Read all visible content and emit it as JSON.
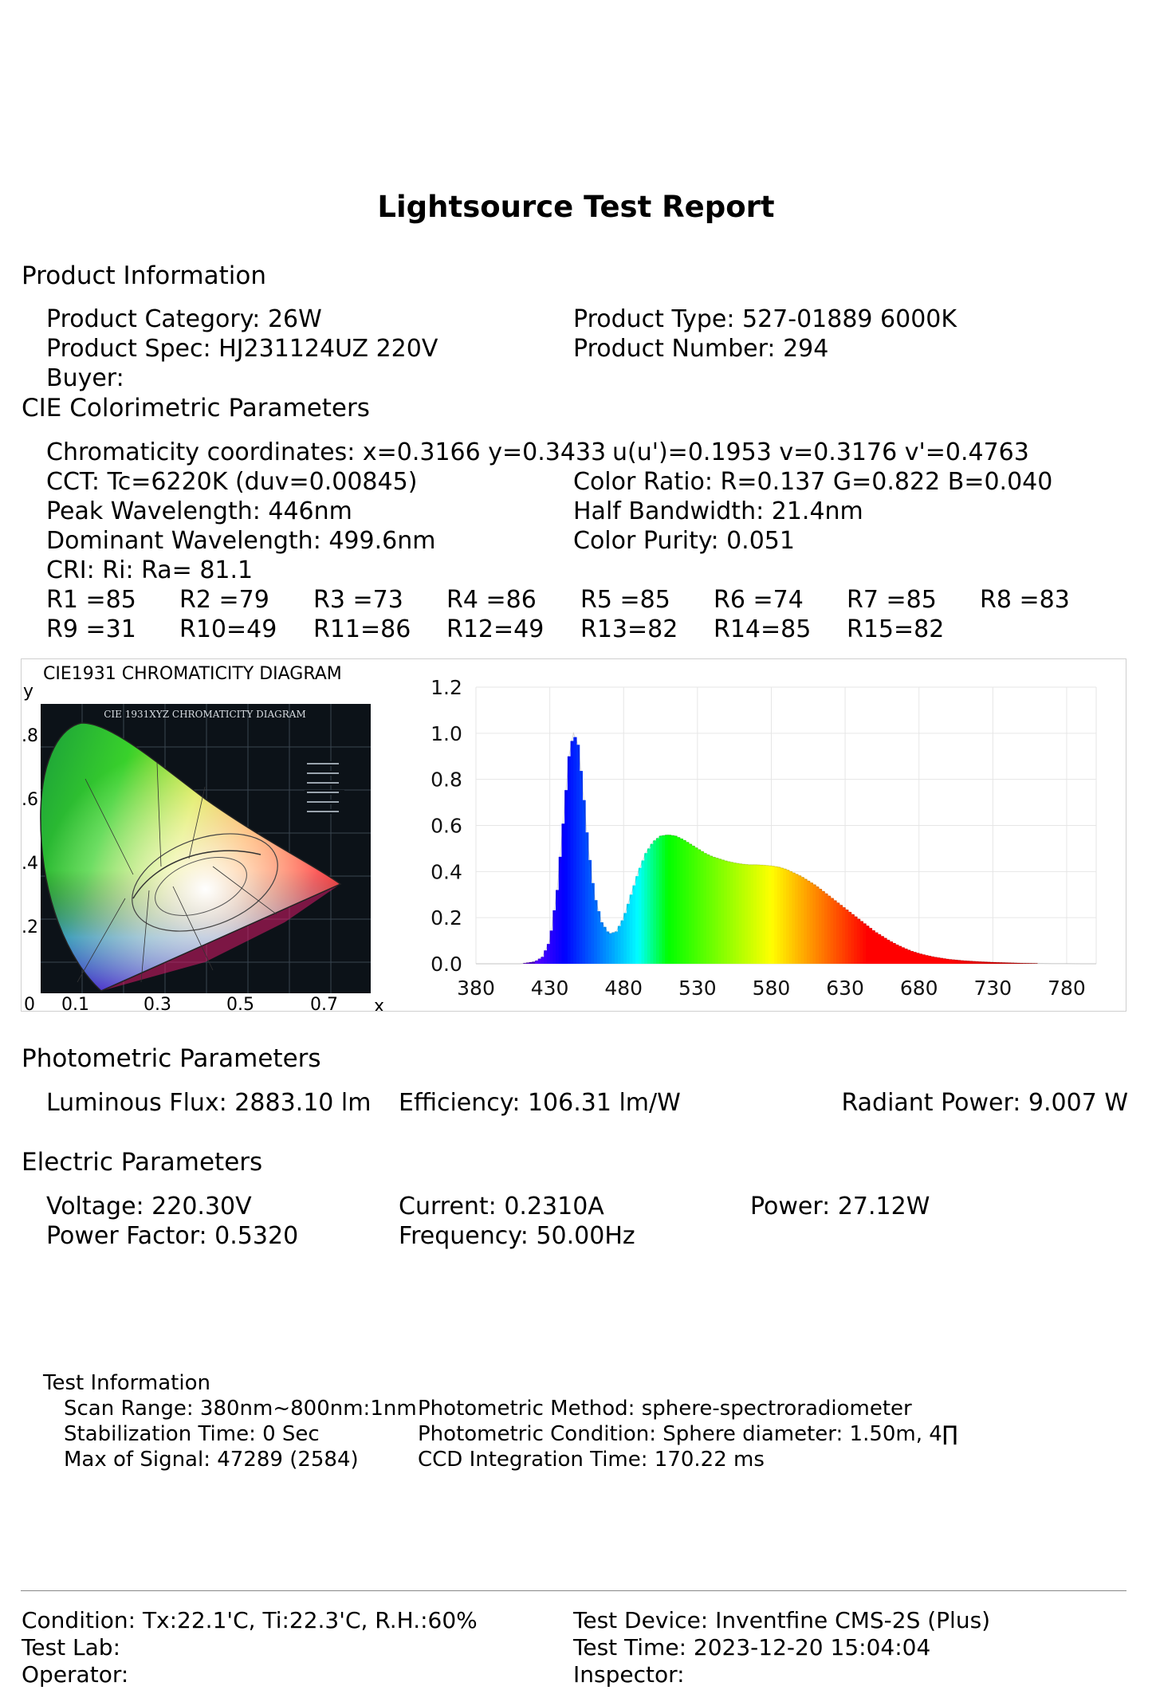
{
  "title": "Lightsource Test Report",
  "product": {
    "heading": "Product Information",
    "category": "Product Category: 26W",
    "type": "Product Type: 527-01889 6000K",
    "spec": "Product Spec: HJ231124UZ 220V",
    "number": "Product Number: 294",
    "buyer": "Buyer:"
  },
  "cie": {
    "heading": "CIE Colorimetric Parameters",
    "chromaticity": "Chromaticity coordinates: x=0.3166 y=0.3433",
    "uv": "u(u')=0.1953 v=0.3176 v'=0.4763",
    "cct": "CCT: Tc=6220K (duv=0.00845)",
    "color_ratio": "Color Ratio: R=0.137  G=0.822  B=0.040",
    "peak": "Peak Wavelength: 446nm",
    "half_bw": "Half Bandwidth: 21.4nm",
    "dominant": "Dominant Wavelength: 499.6nm",
    "purity": "Color Purity: 0.051",
    "cri": "CRI: Ri: Ra= 81.1",
    "r_row1": [
      "R1 =85",
      "R2 =79",
      "R3 =73",
      "R4 =86",
      "R5 =85",
      "R6 =74",
      "R7 =85",
      "R8 =83"
    ],
    "r_row2": [
      "R9 =31",
      "R10=49",
      "R11=86",
      "R12=49",
      "R13=82",
      "R14=85",
      "R15=82"
    ]
  },
  "diagram": {
    "title": "CIE1931 CHROMATICITY DIAGRAM",
    "inner_title": "CIE 1931XYZ CHROMATICITY DIAGRAM",
    "y_axis": "y",
    "x_axis": "x",
    "y_ticks": [
      ".8",
      ".6",
      ".4",
      ".2"
    ],
    "x_ticks": [
      "0",
      "0.1",
      "0.3",
      "0.5",
      "0.7"
    ]
  },
  "chart_data": {
    "type": "area",
    "xlabel": "",
    "ylabel": "",
    "xlim": [
      380,
      800
    ],
    "ylim": [
      0,
      1.2
    ],
    "x_ticks": [
      "380",
      "430",
      "480",
      "530",
      "580",
      "630",
      "680",
      "730",
      "780"
    ],
    "y_ticks": [
      "0.0",
      "0.2",
      "0.4",
      "0.6",
      "0.8",
      "1.0",
      "1.2"
    ],
    "grid": true,
    "x": [
      380,
      400,
      410,
      420,
      425,
      430,
      435,
      440,
      443,
      446,
      449,
      452,
      456,
      460,
      465,
      470,
      475,
      480,
      485,
      490,
      495,
      500,
      505,
      510,
      515,
      520,
      525,
      530,
      535,
      540,
      545,
      550,
      555,
      560,
      565,
      570,
      575,
      580,
      585,
      590,
      595,
      600,
      605,
      610,
      615,
      620,
      625,
      630,
      635,
      640,
      645,
      650,
      655,
      660,
      665,
      670,
      675,
      680,
      685,
      690,
      695,
      700,
      710,
      720,
      730,
      740,
      750,
      760,
      770,
      780,
      790,
      800
    ],
    "values": [
      0,
      0,
      0,
      0.01,
      0.03,
      0.1,
      0.32,
      0.68,
      0.9,
      1.0,
      0.95,
      0.78,
      0.5,
      0.3,
      0.18,
      0.13,
      0.14,
      0.2,
      0.3,
      0.4,
      0.48,
      0.53,
      0.555,
      0.56,
      0.555,
      0.54,
      0.52,
      0.5,
      0.48,
      0.465,
      0.455,
      0.445,
      0.438,
      0.433,
      0.43,
      0.43,
      0.428,
      0.425,
      0.42,
      0.41,
      0.395,
      0.38,
      0.36,
      0.34,
      0.315,
      0.29,
      0.265,
      0.24,
      0.215,
      0.19,
      0.165,
      0.14,
      0.12,
      0.1,
      0.083,
      0.068,
      0.055,
      0.045,
      0.037,
      0.03,
      0.025,
      0.02,
      0.014,
      0.01,
      0.007,
      0.005,
      0.003,
      0.002,
      0.001,
      0.001,
      0,
      0
    ]
  },
  "photometric": {
    "heading": "Photometric Parameters",
    "flux": "Luminous Flux: 2883.10 lm",
    "efficiency": "Efficiency: 106.31 lm/W",
    "radiant": "Radiant Power: 9.007 W"
  },
  "electric": {
    "heading": "Electric Parameters",
    "voltage": "Voltage: 220.30V",
    "current": "Current: 0.2310A",
    "power": "Power: 27.12W",
    "pf": "Power Factor: 0.5320",
    "freq": "Frequency: 50.00Hz"
  },
  "test": {
    "heading": "Test Information",
    "scan": "Scan Range: 380nm~800nm:1nm",
    "method": "Photometric Method: sphere-spectroradiometer",
    "stab": "Stabilization Time: 0 Sec",
    "condition": "Photometric Condition: Sphere diameter: 1.50m, 4∏",
    "signal": "Max of Signal: 47289 (2584)",
    "ccd": "CCD Integration Time: 170.22 ms"
  },
  "footer": {
    "condition": "Condition: Tx:22.1'C, Ti:22.3'C, R.H.:60%",
    "device": "Test Device: Inventfine CMS-2S (Plus)",
    "lab": "Test Lab:",
    "time": "Test Time: 2023-12-20 15:04:04",
    "operator": "Operator:",
    "inspector": "Inspector:"
  }
}
